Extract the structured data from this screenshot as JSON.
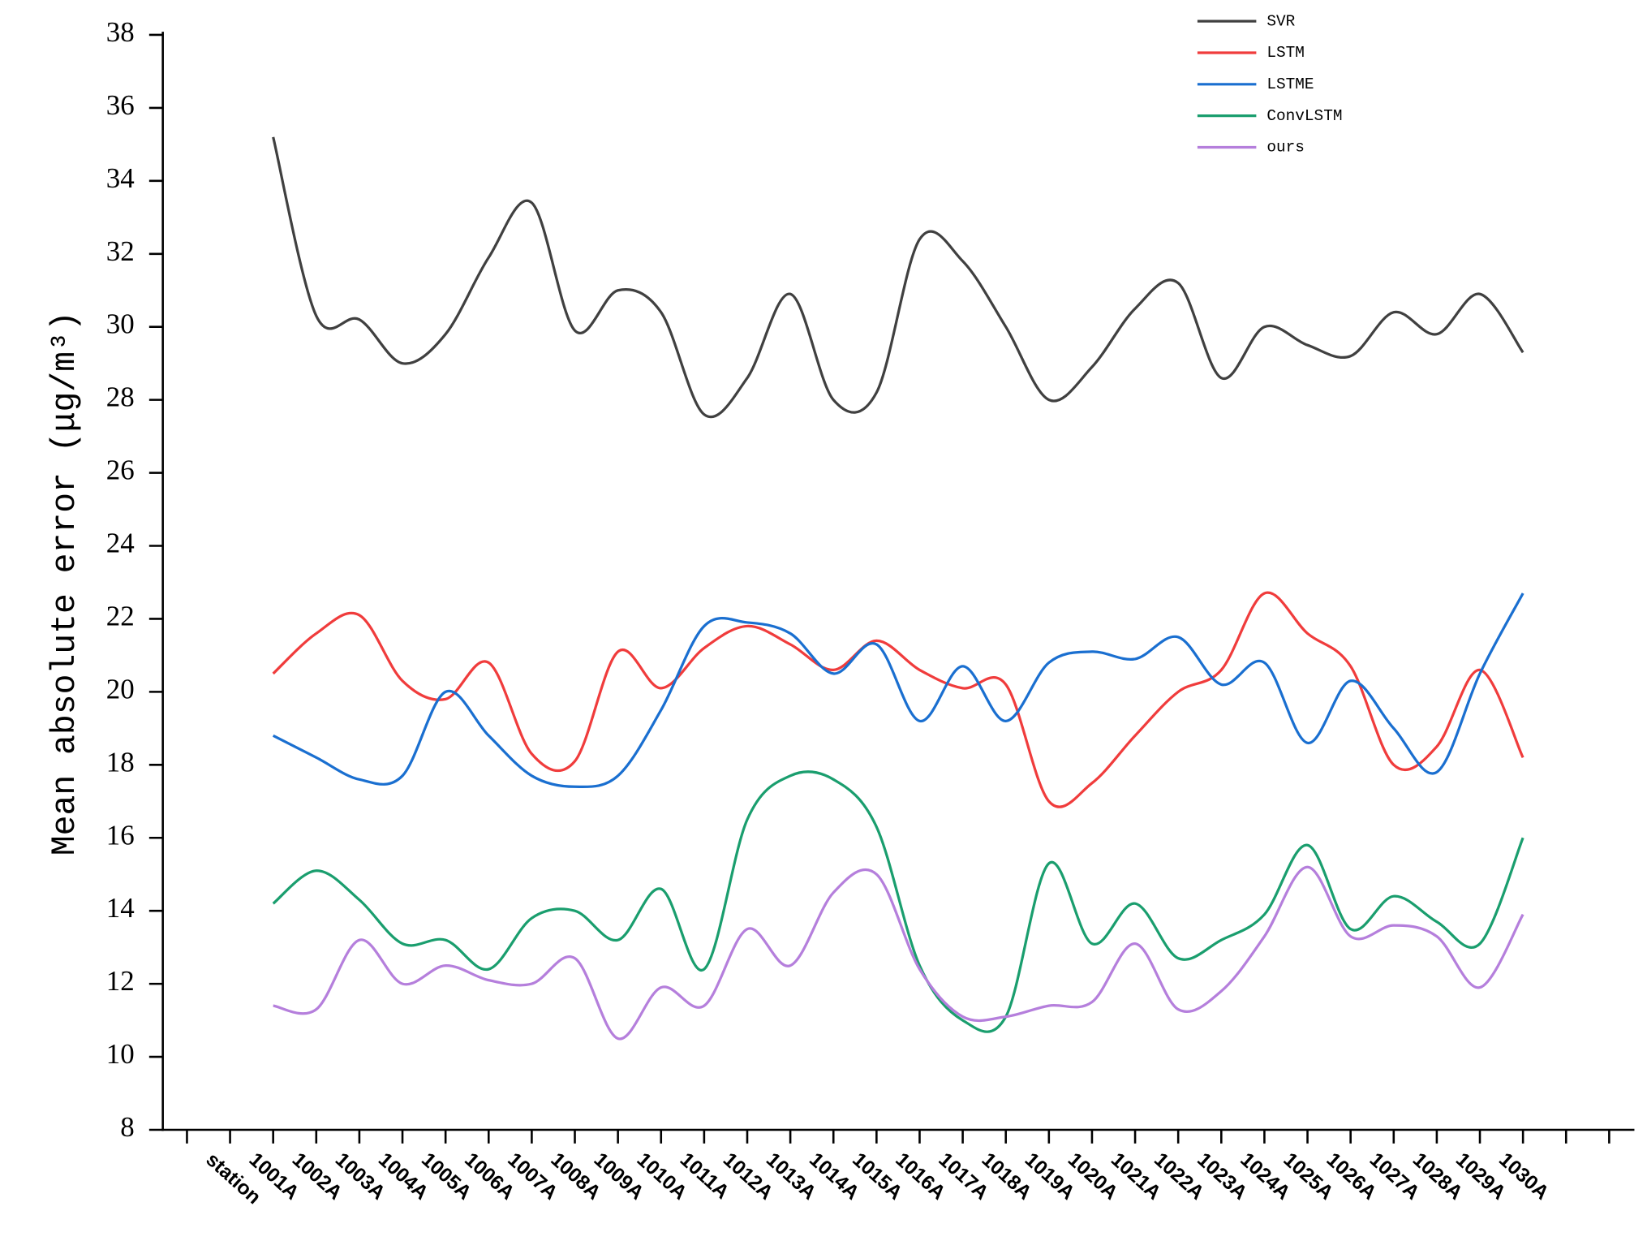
{
  "chart_data": {
    "type": "line",
    "y_label": "Mean absolute error (μg/m³)",
    "categories": [
      null,
      "station",
      "1001A",
      "1002A",
      "1003A",
      "1004A",
      "1005A",
      "1006A",
      "1007A",
      "1008A",
      "1009A",
      "1010A",
      "1011A",
      "1012A",
      "1013A",
      "1014A",
      "1015A",
      "1016A",
      "1017A",
      "1018A",
      "1019A",
      "1020A",
      "1021A",
      "1022A",
      "1023A",
      "1024A",
      "1025A",
      "1026A",
      "1027A",
      "1028A",
      "1029A",
      "1030A",
      null,
      null
    ],
    "ylim": [
      8,
      38
    ],
    "yticks": [
      8,
      10,
      12,
      14,
      16,
      18,
      20,
      22,
      24,
      26,
      28,
      30,
      32,
      34,
      36,
      38
    ],
    "series": [
      {
        "name": "SVR",
        "color": "#404040",
        "values": [
          null,
          null,
          35.2,
          30.3,
          30.2,
          29.0,
          29.8,
          31.9,
          33.4,
          29.9,
          31.0,
          30.4,
          27.6,
          28.6,
          30.9,
          28.0,
          28.2,
          32.4,
          31.8,
          30.0,
          28.0,
          28.9,
          30.5,
          31.2,
          28.6,
          30.0,
          29.5,
          29.2,
          30.4,
          29.8,
          30.9,
          29.3,
          null,
          null
        ]
      },
      {
        "name": "LSTM",
        "color": "#f03c3c",
        "values": [
          null,
          null,
          20.5,
          21.6,
          22.1,
          20.3,
          19.8,
          20.8,
          18.3,
          18.1,
          21.1,
          20.1,
          21.2,
          21.8,
          21.3,
          20.6,
          21.4,
          20.6,
          20.1,
          20.2,
          17.0,
          17.5,
          18.8,
          20.0,
          20.6,
          22.7,
          21.6,
          20.7,
          18.0,
          18.5,
          20.6,
          18.2,
          null,
          null
        ]
      },
      {
        "name": "LSTME",
        "color": "#1a6fd0",
        "values": [
          null,
          null,
          18.8,
          18.2,
          17.6,
          17.7,
          20.0,
          18.8,
          17.7,
          17.4,
          17.7,
          19.5,
          21.8,
          21.9,
          21.6,
          20.5,
          21.3,
          19.2,
          20.7,
          19.2,
          20.8,
          21.1,
          20.9,
          21.5,
          20.2,
          20.8,
          18.6,
          20.3,
          19.0,
          17.8,
          20.5,
          22.7,
          null,
          null
        ]
      },
      {
        "name": "ConvLSTM",
        "color": "#1a9e6e",
        "values": [
          null,
          null,
          14.2,
          15.1,
          14.3,
          13.1,
          13.2,
          12.4,
          13.8,
          14.0,
          13.2,
          14.6,
          12.4,
          16.5,
          17.7,
          17.6,
          16.3,
          12.5,
          11.0,
          11.1,
          15.3,
          13.1,
          14.2,
          12.7,
          13.2,
          13.9,
          15.8,
          13.5,
          14.4,
          13.7,
          13.1,
          16.0,
          null,
          null
        ]
      },
      {
        "name": "ours",
        "color": "#b57fdc",
        "values": [
          null,
          null,
          11.4,
          11.3,
          13.2,
          12.0,
          12.5,
          12.1,
          12.0,
          12.7,
          10.5,
          11.9,
          11.4,
          13.5,
          12.5,
          14.5,
          15.0,
          12.4,
          11.1,
          11.1,
          11.4,
          11.5,
          13.1,
          11.3,
          11.8,
          13.3,
          15.2,
          13.3,
          13.6,
          13.3,
          11.9,
          13.9,
          null,
          null
        ]
      }
    ]
  }
}
